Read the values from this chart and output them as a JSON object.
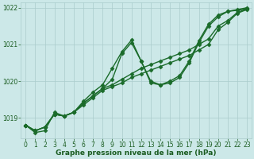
{
  "background_color": "#cce8e8",
  "grid_color": "#aacccc",
  "line_color": "#1a6b2a",
  "text_color": "#1a5c20",
  "xlabel": "Graphe pression niveau de la mer (hPa)",
  "hours": [
    0,
    1,
    2,
    3,
    4,
    5,
    6,
    7,
    8,
    9,
    10,
    11,
    12,
    13,
    14,
    15,
    16,
    17,
    18,
    19,
    20,
    21,
    22,
    23
  ],
  "series": [
    [
      1018.8,
      1018.65,
      1018.75,
      1019.1,
      1019.05,
      1019.15,
      1019.35,
      1019.55,
      1019.75,
      1019.85,
      1019.95,
      1020.1,
      1020.2,
      1020.3,
      1020.4,
      1020.5,
      1020.6,
      1020.7,
      1020.85,
      1021.0,
      1021.4,
      1021.6,
      1021.85,
      1021.95
    ],
    [
      1018.8,
      1018.65,
      1018.75,
      1019.1,
      1019.05,
      1019.15,
      1019.4,
      1019.6,
      1019.8,
      1019.9,
      1020.05,
      1020.2,
      1020.35,
      1020.45,
      1020.55,
      1020.65,
      1020.75,
      1020.85,
      1021.0,
      1021.15,
      1021.5,
      1021.65,
      1021.87,
      1021.97
    ],
    [
      1018.8,
      1018.65,
      1018.75,
      1019.1,
      1019.05,
      1019.15,
      1019.4,
      1019.6,
      1019.8,
      1020.05,
      1020.75,
      1021.05,
      1020.55,
      1019.95,
      1019.9,
      1019.95,
      1020.1,
      1020.5,
      1021.05,
      1021.5,
      1021.75,
      1021.9,
      1021.93,
      1021.97
    ],
    [
      1018.8,
      1018.6,
      1018.65,
      1019.15,
      1019.05,
      1019.15,
      1019.45,
      1019.7,
      1019.9,
      1020.35,
      1020.8,
      1021.12,
      1020.55,
      1020.0,
      1019.9,
      1020.0,
      1020.15,
      1020.55,
      1021.1,
      1021.55,
      1021.8,
      1021.9,
      1021.95,
      1022.0
    ]
  ],
  "ylim": [
    1018.45,
    1022.15
  ],
  "yticks": [
    1019,
    1020,
    1021,
    1022
  ],
  "xlim": [
    -0.5,
    23.5
  ],
  "xticks": [
    0,
    1,
    2,
    3,
    4,
    5,
    6,
    7,
    8,
    9,
    10,
    11,
    12,
    13,
    14,
    15,
    16,
    17,
    18,
    19,
    20,
    21,
    22,
    23
  ],
  "marker": "D",
  "markersize": 2.5,
  "linewidth": 1.0,
  "tick_fontsize": 5.5,
  "label_fontsize": 6.5,
  "figsize": [
    3.2,
    2.0
  ],
  "dpi": 100
}
